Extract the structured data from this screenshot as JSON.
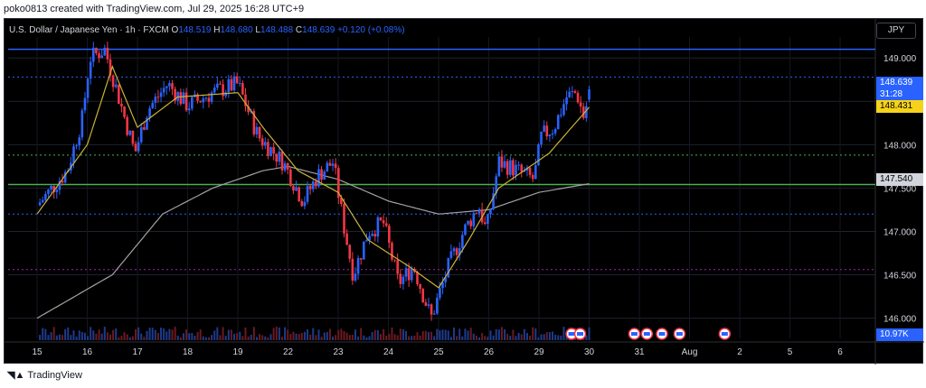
{
  "header": {
    "caption": "poko0813 created with TradingView.com, Jul 29, 2025 16:28 UTC+9"
  },
  "legend": {
    "symbol": "U.S. Dollar / Japanese Yen · 1h · FXCM",
    "o_label": "O",
    "open": "148.519",
    "h_label": "H",
    "high": "148.680",
    "l_label": "L",
    "low": "148.488",
    "c_label": "C",
    "close": "148.639",
    "change": "+0.120 (+0.08%)"
  },
  "currency": "JPY",
  "price_tags": {
    "last": "148.639",
    "countdown": "31:28",
    "ma": "148.431",
    "level": "147.540",
    "volume": "10.97K"
  },
  "footer": {
    "brand": "TradingView"
  },
  "colors": {
    "background": "#000000",
    "up": "#2962ff",
    "down": "#f23645",
    "fast_ma": "#c9b23a",
    "slow_ma": "#a3a3a3",
    "support_line": "#4caf50",
    "dotted_blue": "#2962ff",
    "dotted_purple": "#9c27b0",
    "dotted_green": "#4caf50"
  },
  "chart_data": {
    "type": "candlestick",
    "timeframe": "1h",
    "y_axis": {
      "range": [
        145.85,
        149.2
      ],
      "ticks": [
        146.0,
        146.5,
        147.0,
        147.5,
        148.0,
        148.5,
        149.0
      ],
      "tick_labels": [
        "146.000",
        "146.500",
        "147.000",
        "147.500",
        "148.000",
        "148.500",
        "149.000"
      ],
      "position": "right"
    },
    "x_axis": {
      "tick_labels": [
        "15",
        "16",
        "17",
        "18",
        "19",
        "22",
        "23",
        "24",
        "25",
        "26",
        "29",
        "30",
        "31",
        "Aug",
        "2",
        "5",
        "6"
      ],
      "day_index": [
        0,
        1,
        2,
        3,
        4,
        5,
        6,
        7,
        8,
        9,
        10,
        11,
        12,
        13,
        14,
        15,
        16
      ]
    },
    "price_path_keypoints": [
      [
        0,
        147.3
      ],
      [
        0.6,
        147.7
      ],
      [
        0.9,
        148.3
      ],
      [
        1.05,
        149.0
      ],
      [
        1.35,
        149.1
      ],
      [
        1.65,
        148.5
      ],
      [
        1.95,
        147.9
      ],
      [
        2.2,
        148.4
      ],
      [
        2.6,
        148.7
      ],
      [
        3.0,
        148.45
      ],
      [
        3.5,
        148.6
      ],
      [
        4.0,
        148.7
      ],
      [
        4.4,
        148.1
      ],
      [
        4.9,
        147.8
      ],
      [
        5.3,
        147.35
      ],
      [
        5.6,
        147.65
      ],
      [
        5.9,
        147.8
      ],
      [
        6.1,
        147.1
      ],
      [
        6.3,
        146.5
      ],
      [
        6.6,
        147.0
      ],
      [
        6.9,
        147.1
      ],
      [
        7.2,
        146.4
      ],
      [
        7.5,
        146.6
      ],
      [
        7.85,
        146.0
      ],
      [
        8.2,
        146.6
      ],
      [
        8.5,
        147.0
      ],
      [
        8.8,
        147.3
      ],
      [
        8.95,
        147.0
      ],
      [
        9.2,
        147.8
      ],
      [
        9.4,
        147.75
      ],
      [
        9.9,
        147.6
      ],
      [
        10.05,
        148.1
      ],
      [
        10.3,
        148.2
      ],
      [
        10.55,
        148.55
      ],
      [
        10.75,
        148.6
      ],
      [
        10.9,
        148.3
      ],
      [
        11.0,
        148.639
      ]
    ],
    "ohlc_last": {
      "open": 148.519,
      "high": 148.68,
      "low": 148.488,
      "close": 148.639,
      "change": 0.12,
      "change_pct": 0.08
    },
    "fast_ma_keypoints": [
      [
        0,
        147.2
      ],
      [
        1.0,
        148.0
      ],
      [
        1.5,
        148.9
      ],
      [
        2.0,
        148.2
      ],
      [
        2.8,
        148.55
      ],
      [
        4.0,
        148.6
      ],
      [
        4.5,
        148.2
      ],
      [
        5.2,
        147.7
      ],
      [
        6.0,
        147.45
      ],
      [
        6.6,
        146.9
      ],
      [
        7.4,
        146.6
      ],
      [
        8.0,
        146.35
      ],
      [
        8.6,
        146.9
      ],
      [
        9.2,
        147.5
      ],
      [
        9.7,
        147.7
      ],
      [
        10.2,
        147.9
      ],
      [
        11.0,
        148.431
      ]
    ],
    "slow_ma_keypoints": [
      [
        0,
        146.0
      ],
      [
        1.5,
        146.5
      ],
      [
        2.5,
        147.2
      ],
      [
        3.5,
        147.5
      ],
      [
        4.5,
        147.7
      ],
      [
        5.0,
        147.75
      ],
      [
        6.0,
        147.6
      ],
      [
        7.0,
        147.35
      ],
      [
        8.0,
        147.2
      ],
      [
        9.0,
        147.25
      ],
      [
        10.0,
        147.45
      ],
      [
        11.0,
        147.55
      ]
    ],
    "horizontal_levels": [
      {
        "price": 149.1,
        "style": "solid",
        "color": "#2962ff"
      },
      {
        "price": 148.78,
        "style": "dotted",
        "color": "#2962ff"
      },
      {
        "price": 147.88,
        "style": "dotted",
        "color": "#4caf50"
      },
      {
        "price": 147.54,
        "style": "solid",
        "color": "#4caf50"
      },
      {
        "price": 147.2,
        "style": "dotted",
        "color": "#2962ff"
      },
      {
        "price": 146.56,
        "style": "dotted",
        "color": "#9c27b0"
      }
    ],
    "volume_last": "10.97K",
    "event_markers_day_index": [
      10.65,
      10.82,
      11.9,
      12.15,
      12.45,
      12.8,
      13.7
    ]
  }
}
